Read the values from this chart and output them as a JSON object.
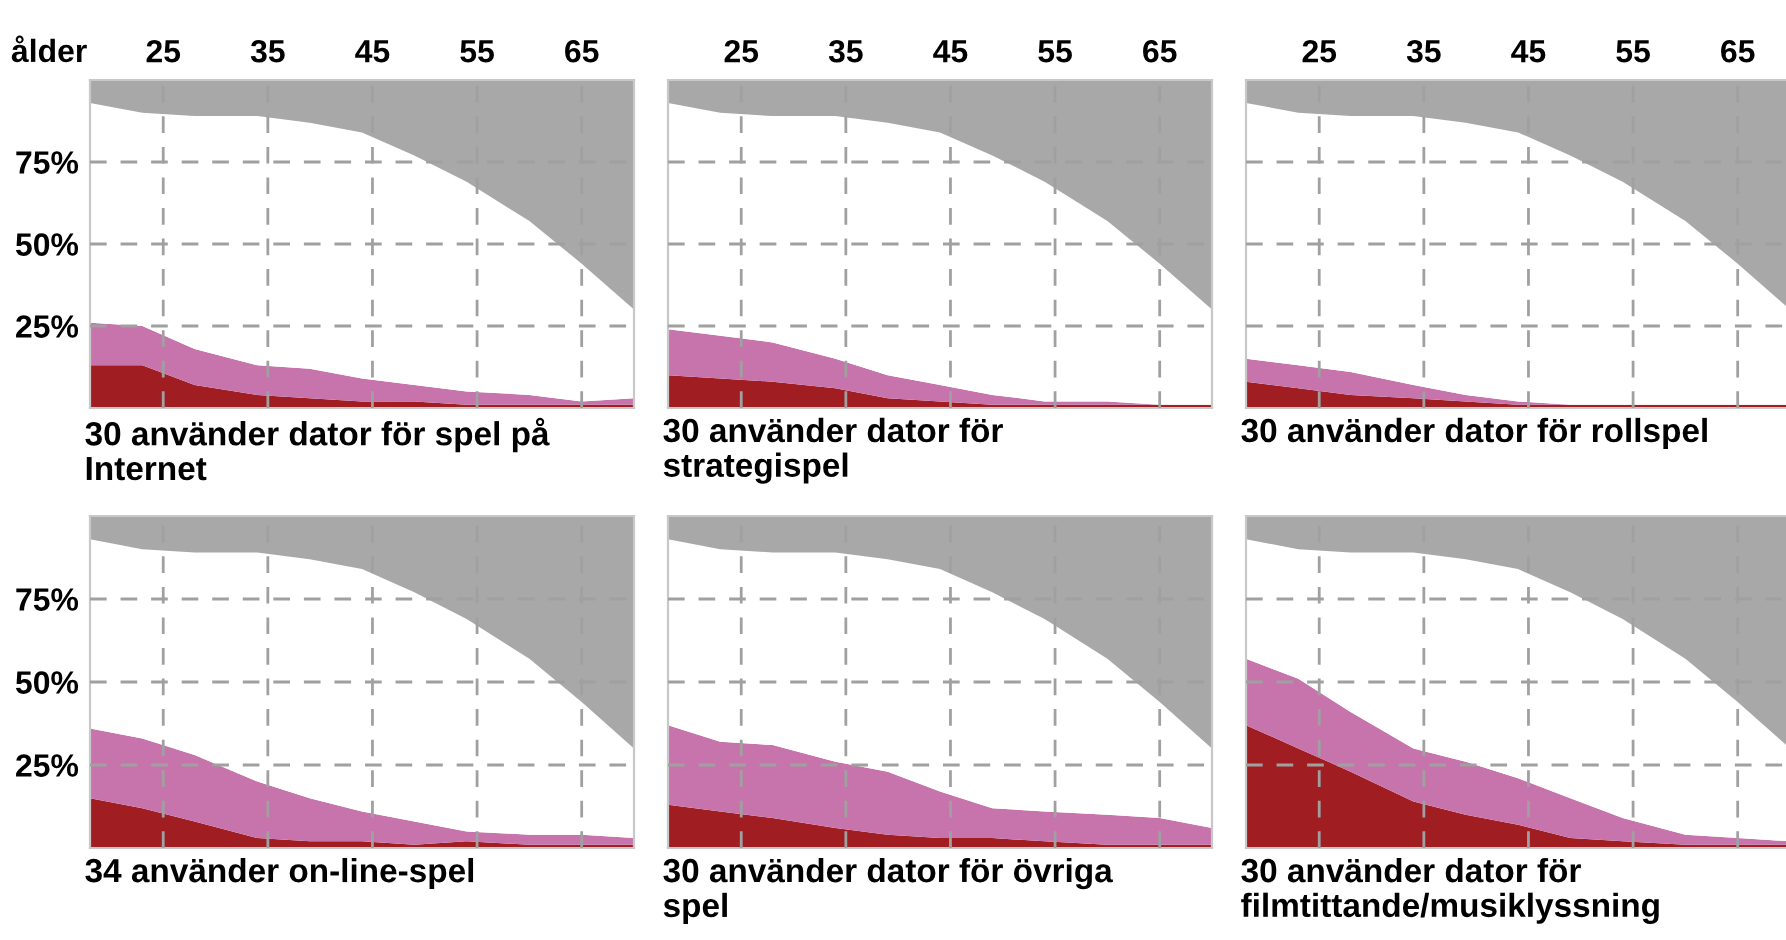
{
  "chart_data": [
    {
      "type": "area",
      "stacked": true,
      "title": "30 använder dator för spel på\nInternet",
      "xlabel": "ålder",
      "x": [
        18,
        23,
        28,
        34,
        39,
        44,
        49,
        54,
        60,
        65,
        70
      ],
      "xlim": [
        18,
        70
      ],
      "xticks": [
        25,
        35,
        45,
        55,
        65
      ],
      "ylim": [
        0,
        100
      ],
      "yticks": [
        {
          "value": 25,
          "label": "25%"
        },
        {
          "value": 50,
          "label": "50%"
        },
        {
          "value": 75,
          "label": "75%"
        }
      ],
      "grid": true,
      "series": [
        {
          "color": "#a01e22",
          "values": [
            13,
            13,
            7,
            4,
            3,
            2,
            2,
            1,
            1,
            1,
            1
          ]
        },
        {
          "color": "#c774ac",
          "values": [
            13,
            12,
            11,
            9,
            9,
            7,
            5,
            4,
            3,
            1,
            2
          ]
        },
        {
          "color": "#ffffff",
          "values": [
            67,
            65,
            71,
            76,
            75,
            75,
            70,
            64,
            53,
            42,
            27
          ]
        },
        {
          "color": "#a8a8a8",
          "values": [
            7,
            10,
            11,
            11,
            13,
            16,
            23,
            31,
            43,
            56,
            70
          ]
        }
      ]
    },
    {
      "type": "area",
      "stacked": true,
      "title": "30 använder dator för\nstrategispel",
      "x": [
        18,
        23,
        28,
        34,
        39,
        44,
        49,
        54,
        60,
        65,
        70
      ],
      "xlim": [
        18,
        70
      ],
      "xticks": [
        25,
        35,
        45,
        55,
        65
      ],
      "ylim": [
        0,
        100
      ],
      "yticks": [
        {
          "value": 25,
          "label": null
        },
        {
          "value": 50,
          "label": null
        },
        {
          "value": 75,
          "label": null
        }
      ],
      "grid": true,
      "tick_labels": "x",
      "series": [
        {
          "color": "#a01e22",
          "values": [
            10,
            9,
            8,
            6,
            3,
            2,
            1,
            1,
            1,
            1,
            1
          ]
        },
        {
          "color": "#c774ac",
          "values": [
            14,
            13,
            12,
            9,
            7,
            5,
            3,
            1,
            1,
            0,
            0
          ]
        },
        {
          "color": "#ffffff",
          "values": [
            69,
            68,
            69,
            74,
            77,
            77,
            73,
            67,
            55,
            43,
            29
          ]
        },
        {
          "color": "#a8a8a8",
          "values": [
            7,
            10,
            11,
            11,
            13,
            16,
            23,
            31,
            43,
            56,
            70
          ]
        }
      ]
    },
    {
      "type": "area",
      "stacked": true,
      "title": "30 använder dator för rollspel",
      "x": [
        18,
        23,
        28,
        34,
        39,
        44,
        49,
        54,
        60,
        65,
        70
      ],
      "xlim": [
        18,
        70
      ],
      "xticks": [
        25,
        35,
        45,
        55,
        65
      ],
      "ylim": [
        0,
        100
      ],
      "yticks": [
        {
          "value": 25,
          "label": null
        },
        {
          "value": 50,
          "label": null
        },
        {
          "value": 75,
          "label": null
        }
      ],
      "grid": true,
      "tick_labels": "x",
      "series": [
        {
          "color": "#a01e22",
          "values": [
            8,
            6,
            4,
            3,
            2,
            1,
            1,
            1,
            1,
            1,
            1
          ]
        },
        {
          "color": "#c774ac",
          "values": [
            7,
            7,
            7,
            4,
            2,
            1,
            0,
            0,
            0,
            0,
            0
          ]
        },
        {
          "color": "#ffffff",
          "values": [
            78,
            77,
            78,
            82,
            83,
            82,
            76,
            68,
            56,
            43,
            29
          ]
        },
        {
          "color": "#a8a8a8",
          "values": [
            7,
            10,
            11,
            11,
            13,
            16,
            23,
            31,
            43,
            56,
            70
          ]
        }
      ]
    },
    {
      "type": "area",
      "stacked": true,
      "title": "34 använder on-line-spel",
      "x": [
        18,
        23,
        28,
        34,
        39,
        44,
        49,
        54,
        60,
        65,
        70
      ],
      "xlim": [
        18,
        70
      ],
      "xticks": [
        {
          "value": 25,
          "label": null
        },
        {
          "value": 35,
          "label": null
        },
        {
          "value": 45,
          "label": null
        },
        {
          "value": 55,
          "label": null
        },
        {
          "value": 65,
          "label": null
        }
      ],
      "ylim": [
        0,
        100
      ],
      "yticks": [
        {
          "value": 25,
          "label": "25%"
        },
        {
          "value": 50,
          "label": "50%"
        },
        {
          "value": 75,
          "label": "75%"
        }
      ],
      "grid": true,
      "tick_labels": "y",
      "series": [
        {
          "color": "#a01e22",
          "values": [
            15,
            12,
            8,
            3,
            2,
            2,
            1,
            2,
            1,
            1,
            1
          ]
        },
        {
          "color": "#c774ac",
          "values": [
            21,
            21,
            20,
            17,
            13,
            9,
            7,
            3,
            3,
            3,
            2
          ]
        },
        {
          "color": "#ffffff",
          "values": [
            57,
            57,
            61,
            69,
            72,
            73,
            69,
            64,
            53,
            40,
            27
          ]
        },
        {
          "color": "#a8a8a8",
          "values": [
            7,
            10,
            11,
            11,
            13,
            16,
            23,
            31,
            43,
            56,
            70
          ]
        }
      ]
    },
    {
      "type": "area",
      "stacked": true,
      "title": "30 använder dator för övriga\nspel",
      "x": [
        18,
        23,
        28,
        34,
        39,
        44,
        49,
        54,
        60,
        65,
        70
      ],
      "xlim": [
        18,
        70
      ],
      "xticks": [
        {
          "value": 25,
          "label": null
        },
        {
          "value": 35,
          "label": null
        },
        {
          "value": 45,
          "label": null
        },
        {
          "value": 55,
          "label": null
        },
        {
          "value": 65,
          "label": null
        }
      ],
      "ylim": [
        0,
        100
      ],
      "yticks": [
        {
          "value": 25,
          "label": null
        },
        {
          "value": 50,
          "label": null
        },
        {
          "value": 75,
          "label": null
        }
      ],
      "grid": true,
      "tick_labels": false,
      "series": [
        {
          "color": "#a01e22",
          "values": [
            13,
            11,
            9,
            6,
            4,
            3,
            3,
            2,
            1,
            1,
            1
          ]
        },
        {
          "color": "#c774ac",
          "values": [
            24,
            21,
            22,
            20,
            19,
            14,
            9,
            9,
            9,
            8,
            5
          ]
        },
        {
          "color": "#ffffff",
          "values": [
            56,
            58,
            58,
            63,
            64,
            67,
            65,
            58,
            47,
            35,
            24
          ]
        },
        {
          "color": "#a8a8a8",
          "values": [
            7,
            10,
            11,
            11,
            13,
            16,
            23,
            31,
            43,
            56,
            70
          ]
        }
      ]
    },
    {
      "type": "area",
      "stacked": true,
      "title": "30 använder dator för\nfilmtittande/musiklyssning",
      "x": [
        18,
        23,
        28,
        34,
        39,
        44,
        49,
        54,
        60,
        65,
        70
      ],
      "xlim": [
        18,
        70
      ],
      "xticks": [
        {
          "value": 25,
          "label": null
        },
        {
          "value": 35,
          "label": null
        },
        {
          "value": 45,
          "label": null
        },
        {
          "value": 55,
          "label": null
        },
        {
          "value": 65,
          "label": null
        }
      ],
      "ylim": [
        0,
        100
      ],
      "yticks": [
        {
          "value": 25,
          "label": null
        },
        {
          "value": 50,
          "label": null
        },
        {
          "value": 75,
          "label": null
        }
      ],
      "grid": true,
      "tick_labels": false,
      "series": [
        {
          "color": "#a01e22",
          "values": [
            37,
            30,
            23,
            14,
            10,
            7,
            3,
            2,
            1,
            1,
            1
          ]
        },
        {
          "color": "#c774ac",
          "values": [
            20,
            21,
            18,
            16,
            16,
            14,
            12,
            7,
            3,
            2,
            1
          ]
        },
        {
          "color": "#ffffff",
          "values": [
            36,
            39,
            48,
            59,
            61,
            63,
            62,
            60,
            53,
            41,
            28
          ]
        },
        {
          "color": "#a8a8a8",
          "values": [
            7,
            10,
            11,
            11,
            13,
            16,
            23,
            31,
            43,
            56,
            70
          ]
        }
      ]
    }
  ]
}
